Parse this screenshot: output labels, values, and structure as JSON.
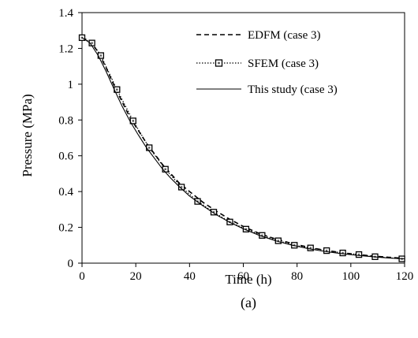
{
  "chart_data": {
    "type": "line",
    "xlabel": "Time (h)",
    "ylabel": "Pressure (MPa)",
    "caption": "(a)",
    "xlim": [
      0,
      120
    ],
    "ylim": [
      0,
      1.4
    ],
    "xticks": [
      0,
      20,
      40,
      60,
      80,
      100,
      120
    ],
    "yticks": [
      0,
      0.2,
      0.4,
      0.6,
      0.8,
      1,
      1.2,
      1.4
    ],
    "xtick_labels": [
      "0",
      "20",
      "40",
      "60",
      "80",
      "100",
      "120"
    ],
    "ytick_labels": [
      "0",
      "0.2",
      "0.4",
      "0.6",
      "0.8",
      "1",
      "1.2",
      "1.4"
    ],
    "grid": false,
    "legend_position": "top-right",
    "series": [
      {
        "name": "EDFM (case 3)",
        "style": "dashed",
        "color": "#000000",
        "x": [
          0,
          3,
          6,
          9,
          12,
          15,
          18,
          21,
          24,
          27,
          30,
          33,
          36,
          40,
          45,
          50,
          55,
          60,
          66,
          72,
          78,
          84,
          90,
          96,
          102,
          108,
          114,
          120
        ],
        "y": [
          1.26,
          1.24,
          1.18,
          1.09,
          0.99,
          0.9,
          0.81,
          0.74,
          0.67,
          0.61,
          0.55,
          0.5,
          0.45,
          0.4,
          0.34,
          0.29,
          0.245,
          0.205,
          0.165,
          0.135,
          0.11,
          0.09,
          0.073,
          0.06,
          0.049,
          0.04,
          0.033,
          0.027
        ]
      },
      {
        "name": "SFEM (case 3)",
        "style": "dotted-square-markers",
        "color": "#000000",
        "x": [
          0,
          3.7,
          7,
          13,
          19,
          25,
          31,
          37,
          43,
          49,
          55,
          61,
          67,
          73,
          79,
          85,
          91,
          97,
          103,
          109,
          119
        ],
        "y": [
          1.26,
          1.23,
          1.16,
          0.97,
          0.795,
          0.645,
          0.525,
          0.425,
          0.345,
          0.285,
          0.23,
          0.19,
          0.155,
          0.125,
          0.1,
          0.085,
          0.07,
          0.057,
          0.048,
          0.036,
          0.024
        ]
      },
      {
        "name": "This study (case 3)",
        "style": "solid",
        "color": "#000000",
        "x": [
          0,
          3,
          6,
          9,
          12,
          15,
          18,
          21,
          24,
          27,
          30,
          33,
          36,
          40,
          45,
          50,
          55,
          60,
          66,
          72,
          78,
          84,
          90,
          96,
          102,
          108,
          114,
          120
        ],
        "y": [
          1.26,
          1.23,
          1.16,
          1.07,
          0.97,
          0.875,
          0.79,
          0.715,
          0.645,
          0.585,
          0.525,
          0.475,
          0.43,
          0.375,
          0.32,
          0.27,
          0.228,
          0.192,
          0.155,
          0.125,
          0.101,
          0.082,
          0.066,
          0.054,
          0.044,
          0.036,
          0.029,
          0.024
        ]
      }
    ]
  }
}
